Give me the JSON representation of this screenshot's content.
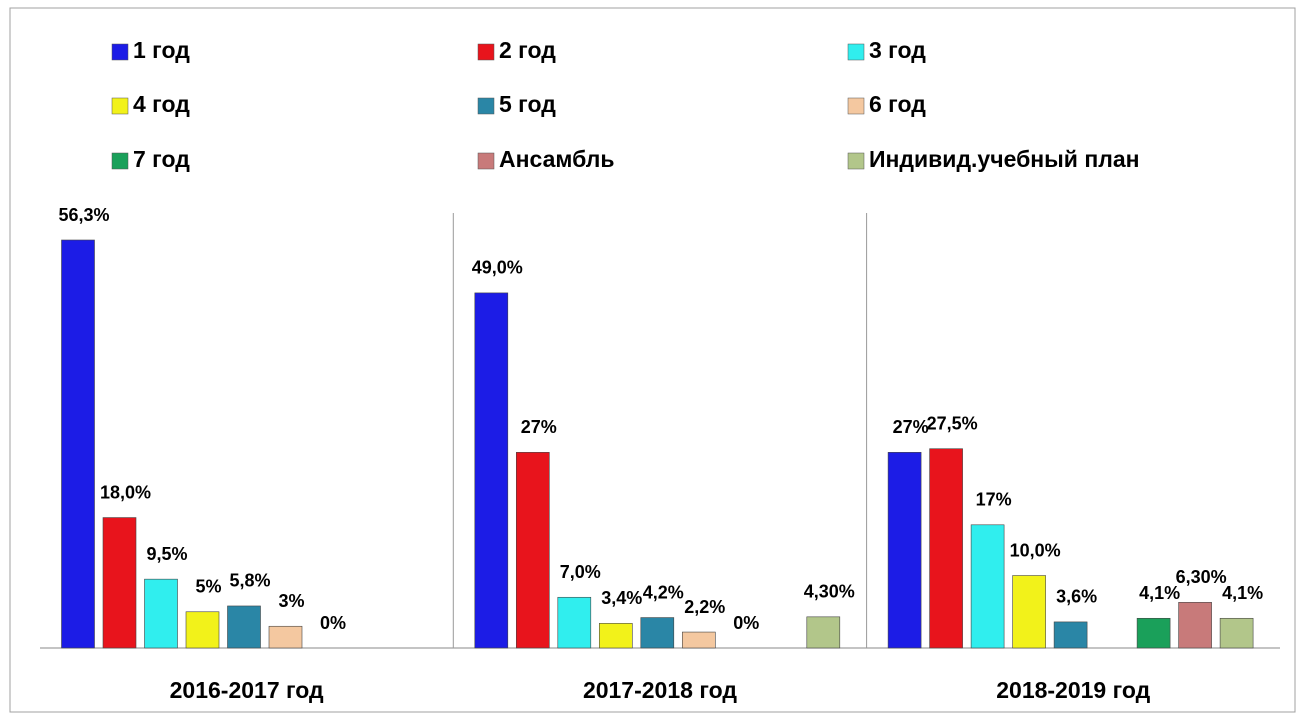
{
  "chart_data": {
    "type": "bar",
    "categories": [
      "2016-2017 год",
      "2017-2018 год",
      "2018-2019 год"
    ],
    "series": [
      {
        "name": "1 год",
        "color": "#1c1ce6",
        "values": [
          56.3,
          49.0,
          27
        ],
        "value_labels": [
          "56,3%",
          "49,0%",
          "27%"
        ]
      },
      {
        "name": "2 год",
        "color": "#e8141c",
        "values": [
          18.0,
          27,
          27.5
        ],
        "value_labels": [
          "18,0%",
          "27%",
          "27,5%"
        ]
      },
      {
        "name": "3 год",
        "color": "#30eeee",
        "values": [
          9.5,
          7.0,
          17
        ],
        "value_labels": [
          "9,5%",
          "7,0%",
          "17%"
        ]
      },
      {
        "name": "4 год",
        "color": "#f2f21a",
        "values": [
          5,
          3.4,
          10.0
        ],
        "value_labels": [
          "5%",
          "3,4%",
          "10,0%"
        ]
      },
      {
        "name": "5 год",
        "color": "#2a86a6",
        "values": [
          5.8,
          4.2,
          3.6
        ],
        "value_labels": [
          "5,8%",
          "4,2%",
          "3,6%"
        ]
      },
      {
        "name": "6 год",
        "color": "#f4c8a0",
        "values": [
          3,
          2.2,
          null
        ],
        "value_labels": [
          "3%",
          "2,2%",
          null
        ]
      },
      {
        "name": "7 год",
        "color": "#1aa05a",
        "values": [
          0,
          0,
          4.1
        ],
        "value_labels": [
          "0%",
          "0%",
          "4,1%"
        ]
      },
      {
        "name": "Ансамбль",
        "color": "#c87a7a",
        "values": [
          null,
          null,
          6.3
        ],
        "value_labels": [
          null,
          null,
          "6,30%"
        ]
      },
      {
        "name": "Индивид.учебный план",
        "color": "#b2c68a",
        "values": [
          null,
          4.3,
          4.1
        ],
        "value_labels": [
          null,
          "4,30%",
          "4,1%"
        ]
      }
    ]
  }
}
